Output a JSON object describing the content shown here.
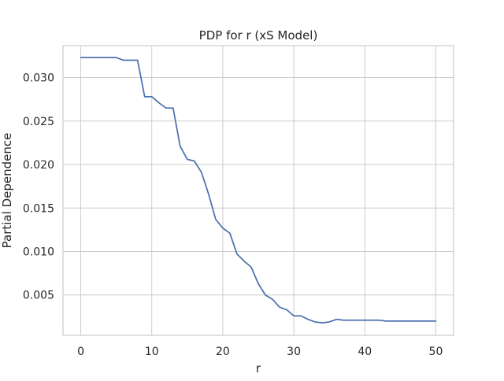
{
  "chart_data": {
    "type": "line",
    "title": "PDP for r (xS Model)",
    "xlabel": "r",
    "ylabel": "Partial Dependence",
    "xlim": [
      -2.5,
      52.5
    ],
    "ylim": [
      0.00036,
      0.03367
    ],
    "xticks": [
      0,
      10,
      20,
      30,
      40,
      50
    ],
    "xtick_labels": [
      "0",
      "10",
      "20",
      "30",
      "40",
      "50"
    ],
    "yticks": [
      0.005,
      0.01,
      0.015,
      0.02,
      0.025,
      0.03
    ],
    "ytick_labels": [
      "0.005",
      "0.010",
      "0.015",
      "0.020",
      "0.025",
      "0.030"
    ],
    "grid": true,
    "series_color": "#4c72b0",
    "series": [
      {
        "x": [
          0,
          1,
          2,
          3,
          4,
          5,
          6,
          7,
          8,
          9,
          10,
          11,
          12,
          13,
          14,
          15,
          16,
          17,
          18,
          19,
          20,
          21,
          22,
          23,
          24,
          25,
          26,
          27,
          28,
          29,
          30,
          31,
          32,
          33,
          34,
          35,
          36,
          37,
          38,
          39,
          40,
          41,
          42,
          43,
          44,
          45,
          46,
          47,
          48,
          49,
          50
        ],
        "values": [
          0.0323,
          0.0323,
          0.0323,
          0.0323,
          0.0323,
          0.0323,
          0.032,
          0.032,
          0.032,
          0.0278,
          0.0278,
          0.0271,
          0.0265,
          0.0265,
          0.0221,
          0.0206,
          0.0204,
          0.0191,
          0.0166,
          0.0137,
          0.0127,
          0.0121,
          0.0097,
          0.0089,
          0.0082,
          0.0063,
          0.005,
          0.0045,
          0.0036,
          0.0033,
          0.0026,
          0.0026,
          0.0022,
          0.0019,
          0.0018,
          0.0019,
          0.0022,
          0.0021,
          0.0021,
          0.0021,
          0.0021,
          0.0021,
          0.0021,
          0.002,
          0.002,
          0.002,
          0.002,
          0.002,
          0.002,
          0.002,
          0.002
        ]
      }
    ]
  }
}
